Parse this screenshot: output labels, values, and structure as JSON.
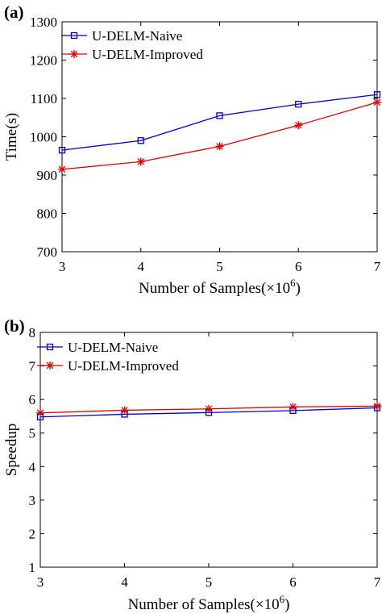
{
  "chart_data": [
    {
      "panel_label": "(a)",
      "type": "line",
      "xlabel": "Number of Samples(×10",
      "xlabel_sup": "6",
      "xlabel_end": ")",
      "ylabel": "Time(s)",
      "x": [
        3,
        4,
        5,
        6,
        7
      ],
      "xlim": [
        3,
        7
      ],
      "ylim": [
        700,
        1300
      ],
      "xticks": [
        3,
        4,
        5,
        6,
        7
      ],
      "yticks": [
        700,
        800,
        900,
        1000,
        1100,
        1200,
        1300
      ],
      "grid": false,
      "legend_position": "top-left",
      "series": [
        {
          "name": "U-DELM-Naive",
          "color": "#0000cc",
          "marker": "square",
          "values": [
            965,
            990,
            1055,
            1085,
            1110
          ]
        },
        {
          "name": "U-DELM-Improved",
          "color": "#e00000",
          "marker": "star",
          "values": [
            915,
            935,
            975,
            1030,
            1090
          ]
        }
      ]
    },
    {
      "panel_label": "(b)",
      "type": "line",
      "xlabel": "Number of Samples(×10",
      "xlabel_sup": "6",
      "xlabel_end": ")",
      "ylabel": "Speedup",
      "x": [
        3,
        4,
        5,
        6,
        7
      ],
      "xlim": [
        3,
        7
      ],
      "ylim": [
        1,
        8
      ],
      "xticks": [
        3,
        4,
        5,
        6,
        7
      ],
      "yticks": [
        1,
        2,
        3,
        4,
        5,
        6,
        7,
        8
      ],
      "grid": false,
      "legend_position": "top-left",
      "series": [
        {
          "name": "U-DELM-Naive",
          "color": "#0000cc",
          "marker": "square",
          "values": [
            5.48,
            5.56,
            5.61,
            5.67,
            5.75
          ]
        },
        {
          "name": "U-DELM-Improved",
          "color": "#e00000",
          "marker": "star",
          "values": [
            5.6,
            5.68,
            5.72,
            5.78,
            5.8
          ]
        }
      ]
    }
  ]
}
